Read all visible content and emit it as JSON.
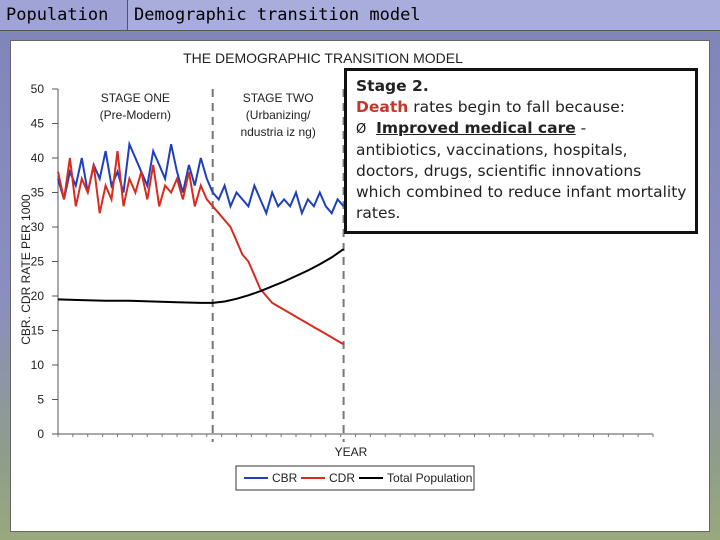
{
  "header": {
    "tab_left": "Population",
    "tab_title": "Demographic transition model"
  },
  "callout": {
    "heading": "Stage 2.",
    "death_word": "Death",
    "death_rest": " rates begin to fall because:",
    "bullet_symbol": "Ø",
    "cause": "Improved medical care",
    "cause_dash": "  -",
    "details": "antibiotics, vaccinations, hospitals, doctors, drugs, scientific innovations which combined to reduce infant mortality rates."
  },
  "chart_data": {
    "type": "line",
    "title": "THE DEMOGRAPHIC TRANSITION MODEL",
    "xlabel": "YEAR",
    "ylabel": "CBR. CDR RATE PER 1000",
    "ylim": [
      0,
      50
    ],
    "yticks": [
      0,
      5,
      10,
      15,
      20,
      25,
      30,
      35,
      40,
      45,
      50
    ],
    "ytick_labels": [
      "0",
      "5",
      "10",
      "15",
      "20",
      "25",
      "30",
      "35",
      "40",
      "45",
      "50"
    ],
    "xlim": [
      0,
      100
    ],
    "stage_boundaries": [
      26,
      48
    ],
    "stage_labels": [
      {
        "line1": "STAGE ONE",
        "line2": "(Pre-Modern)",
        "x": 13
      },
      {
        "line1": "STAGE TWO",
        "line2": "(Urbanizing/",
        "line3": "ndustria iz ng)",
        "x": 37
      }
    ],
    "grid": false,
    "legend": "bottom-center",
    "series": [
      {
        "name": "CBR",
        "color": "#1f3fbf",
        "x": [
          0,
          1,
          2,
          3,
          4,
          5,
          6,
          7,
          8,
          9,
          10,
          11,
          12,
          13,
          14,
          15,
          16,
          17,
          18,
          19,
          20,
          21,
          22,
          23,
          24,
          25,
          26,
          27,
          28,
          29,
          30,
          31,
          32,
          33,
          34,
          35,
          36,
          37,
          38,
          39,
          40,
          41,
          42,
          43,
          44,
          45,
          46,
          47,
          48
        ],
        "y": [
          37,
          34,
          38,
          36,
          40,
          35,
          39,
          37,
          41,
          36,
          38,
          35,
          42,
          40,
          38,
          36,
          41,
          39,
          37,
          42,
          38,
          35,
          39,
          36,
          40,
          37,
          35,
          34,
          36,
          33,
          35,
          34,
          33,
          36,
          34,
          32,
          35,
          33,
          34,
          33,
          35,
          32,
          34,
          33,
          35,
          33,
          32,
          34,
          33
        ]
      },
      {
        "name": "CDR",
        "color": "#d92b1f",
        "x": [
          0,
          1,
          2,
          3,
          4,
          5,
          6,
          7,
          8,
          9,
          10,
          11,
          12,
          13,
          14,
          15,
          16,
          17,
          18,
          19,
          20,
          21,
          22,
          23,
          24,
          25,
          26,
          27,
          28,
          29,
          30,
          31,
          32,
          33,
          34,
          35,
          36,
          37,
          38,
          39,
          40,
          41,
          42,
          43,
          44,
          45,
          46,
          47,
          48
        ],
        "y": [
          38,
          34,
          40,
          33,
          37,
          35,
          39,
          32,
          36,
          34,
          41,
          33,
          37,
          35,
          38,
          34,
          39,
          33,
          36,
          35,
          37,
          34,
          38,
          33,
          36,
          34,
          33,
          32,
          31,
          30,
          28,
          26,
          25,
          23,
          21,
          20,
          19,
          18.5,
          18,
          17.5,
          17,
          16.5,
          16,
          15.5,
          15,
          14.5,
          14,
          13.5,
          13
        ]
      },
      {
        "name": "Total Population",
        "color": "#000000",
        "x": [
          0,
          4,
          8,
          12,
          16,
          20,
          24,
          26,
          28,
          30,
          32,
          34,
          36,
          38,
          40,
          42,
          44,
          46,
          48
        ],
        "y": [
          19.5,
          19.4,
          19.3,
          19.3,
          19.2,
          19.1,
          19,
          19,
          19.2,
          19.6,
          20.1,
          20.7,
          21.4,
          22.1,
          22.9,
          23.7,
          24.6,
          25.6,
          26.8
        ]
      }
    ]
  }
}
